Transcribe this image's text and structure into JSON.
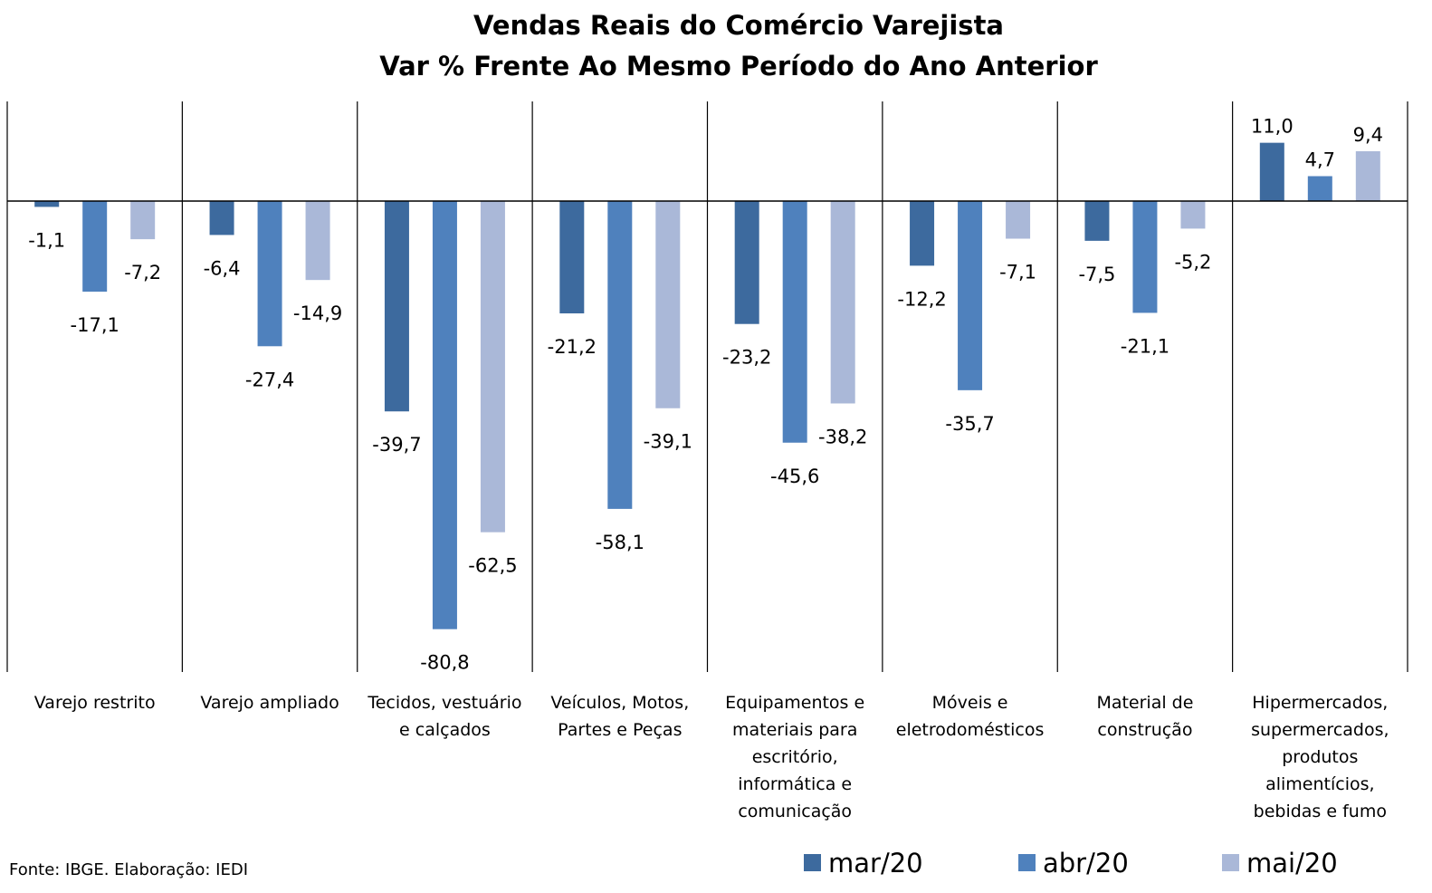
{
  "chart_data": {
    "type": "bar",
    "title": "Vendas Reais do Comércio Varejista",
    "subtitle": "Var % Frente Ao Mesmo Período do Ano Anterior",
    "categories": [
      [
        "Varejo restrito"
      ],
      [
        "Varejo ampliado"
      ],
      [
        "Tecidos, vestuário",
        "e calçados"
      ],
      [
        "Veículos, Motos,",
        "Partes e Peças"
      ],
      [
        "Equipamentos e",
        "materiais para",
        "escritório,",
        "informática e",
        "comunicação"
      ],
      [
        "Móveis e",
        "eletrodomésticos"
      ],
      [
        "Material de",
        "construção"
      ],
      [
        "Hipermercados,",
        "supermercados,",
        "produtos",
        "alimentícios,",
        "bebidas e fumo"
      ]
    ],
    "series": [
      {
        "name": "mar/20",
        "color": "#3d6a9e",
        "values": [
          -1.1,
          -6.4,
          -39.7,
          -21.2,
          -23.2,
          -12.2,
          -7.5,
          11.0
        ],
        "labels": [
          "-1,1",
          "-6,4",
          "-39,7",
          "-21,2",
          "-23,2",
          "-12,2",
          "-7,5",
          "11,0"
        ]
      },
      {
        "name": "abr/20",
        "color": "#4f81bd",
        "values": [
          -17.1,
          -27.4,
          -80.8,
          -58.1,
          -45.6,
          -35.7,
          -21.1,
          4.7
        ],
        "labels": [
          "-17,1",
          "-27,4",
          "-80,8",
          "-58,1",
          "-45,6",
          "-35,7",
          "-21,1",
          "4,7"
        ]
      },
      {
        "name": "mai/20",
        "color": "#aab8d8",
        "values": [
          -7.2,
          -14.9,
          -62.5,
          -39.1,
          -38.2,
          -7.1,
          -5.2,
          9.4
        ],
        "labels": [
          "-7,2",
          "-14,9",
          "-62,5",
          "-39,1",
          "-38,2",
          "-7,1",
          "-5,2",
          "9,4"
        ]
      }
    ],
    "ylim": [
      -89,
      19
    ],
    "grid": false,
    "legend_position": "bottom-right"
  },
  "source": "Fonte: IBGE. Elaboração: IEDI"
}
